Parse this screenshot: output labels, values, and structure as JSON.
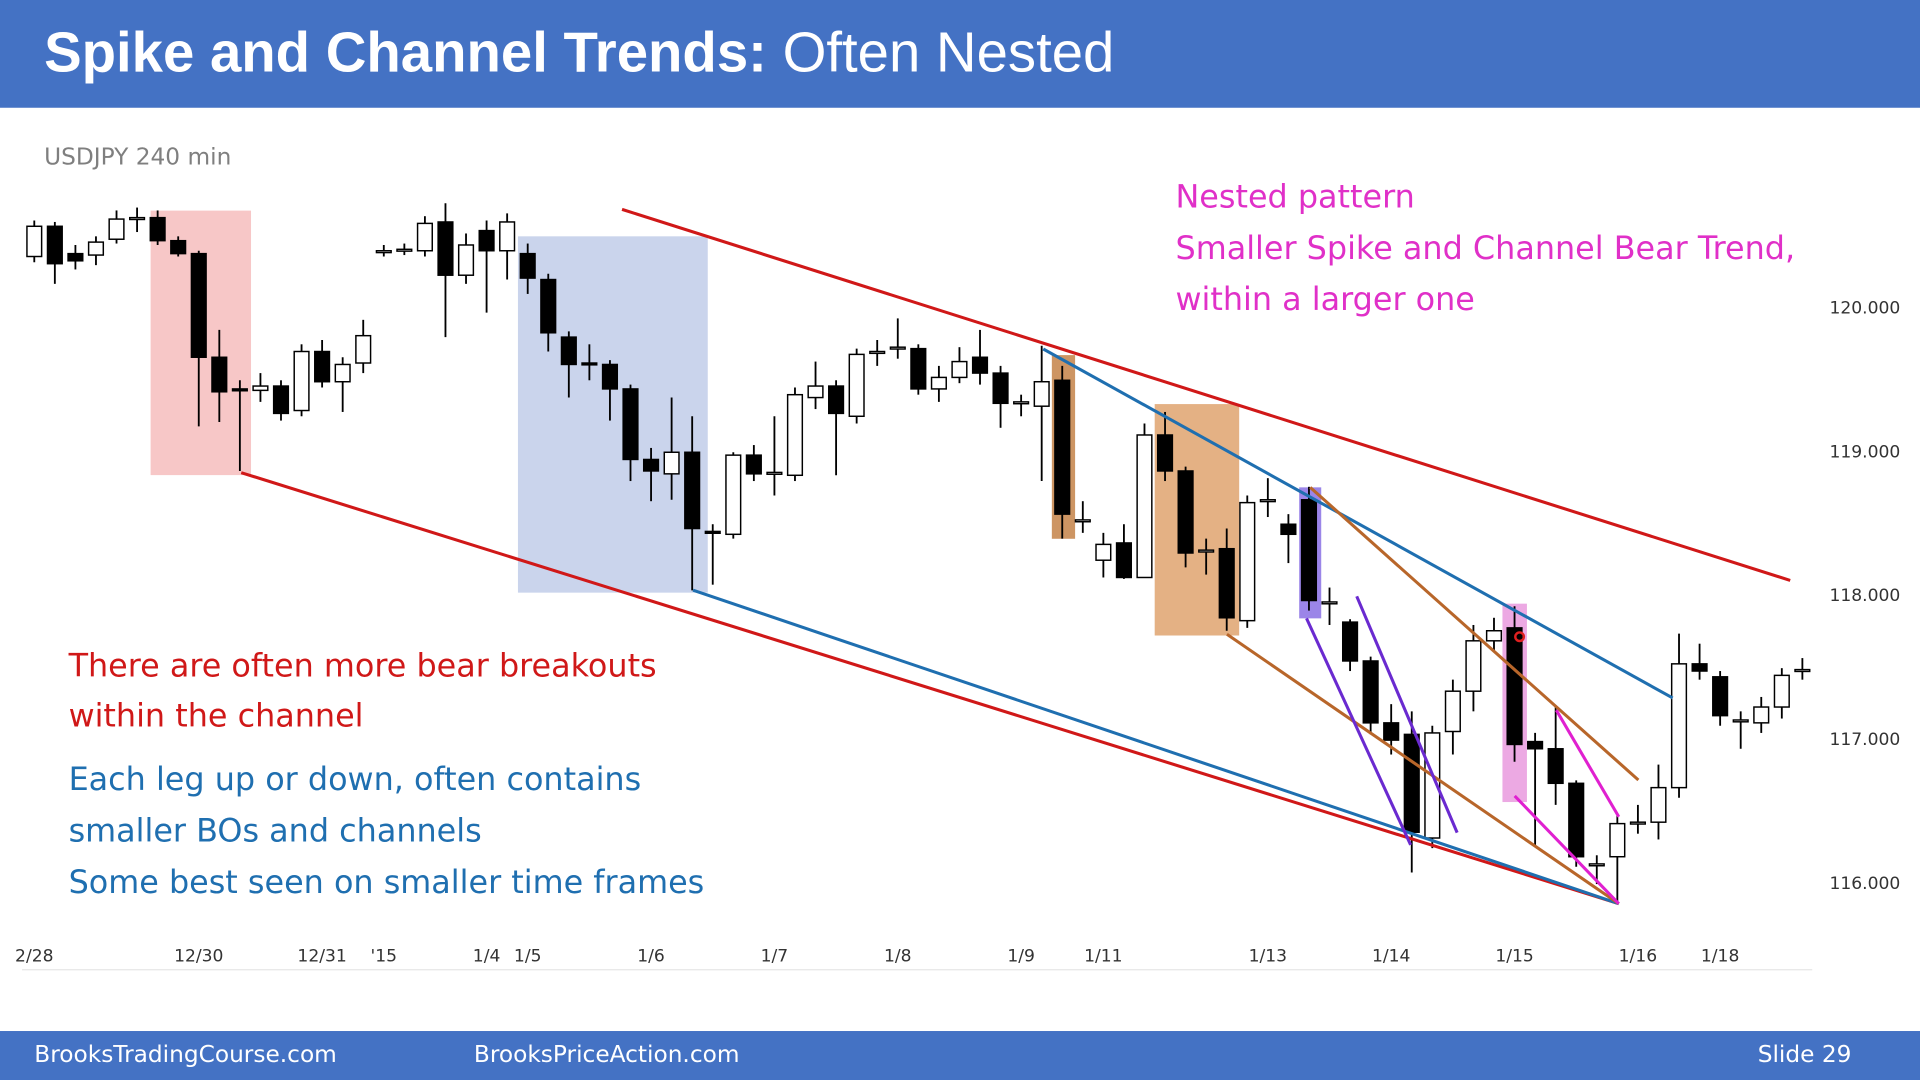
{
  "header": {
    "title_bold": "Spike and Channel Trends:",
    "title_rest": "Often Nested"
  },
  "chart_data": {
    "type": "candlestick",
    "subtitle": "USDJPY 240 min",
    "categories": [
      "2/28",
      null,
      null,
      null,
      null,
      null,
      null,
      null,
      "12/30",
      null,
      null,
      null,
      null,
      null,
      "12/31",
      null,
      null,
      "'15",
      null,
      null,
      null,
      null,
      "1/4",
      null,
      "1/5",
      null,
      null,
      null,
      null,
      null,
      "1/6",
      null,
      null,
      null,
      null,
      null,
      "1/7",
      null,
      null,
      null,
      null,
      null,
      "1/8",
      null,
      null,
      null,
      null,
      null,
      "1/9",
      null,
      null,
      null,
      "1/11",
      null,
      null,
      null,
      null,
      null,
      null,
      null,
      "1/13",
      null,
      null,
      null,
      null,
      null,
      "1/14",
      null,
      null,
      null,
      null,
      null,
      "1/15",
      null,
      null,
      null,
      null,
      null,
      "1/16",
      null,
      null,
      null,
      "1/18",
      null,
      null,
      null,
      null
    ],
    "open": [
      120.36,
      120.57,
      120.38,
      120.37,
      120.48,
      120.62,
      120.63,
      120.47,
      120.38,
      119.66,
      119.44,
      119.43,
      119.46,
      119.29,
      119.7,
      119.49,
      119.62,
      120.4,
      120.4,
      120.4,
      120.6,
      120.23,
      120.54,
      120.4,
      120.38,
      120.2,
      119.8,
      119.62,
      119.61,
      119.44,
      118.95,
      118.85,
      119.0,
      118.45,
      118.43,
      118.98,
      118.86,
      118.84,
      119.38,
      119.46,
      119.25,
      119.7,
      119.72,
      119.72,
      119.44,
      119.52,
      119.66,
      119.55,
      119.35,
      119.32,
      119.5,
      118.53,
      118.25,
      118.37,
      118.13,
      119.12,
      118.87,
      118.32,
      118.33,
      117.83,
      118.67,
      118.5,
      118.67,
      117.96,
      117.82,
      117.55,
      117.12,
      117.04,
      116.32,
      117.06,
      117.34,
      117.69,
      117.78,
      116.99,
      116.94,
      116.7,
      116.14,
      116.19,
      116.43,
      116.43,
      116.67,
      117.53,
      117.44,
      117.14,
      117.12,
      117.23,
      117.49
    ],
    "high": [
      120.61,
      120.6,
      120.44,
      120.5,
      120.68,
      120.7,
      120.68,
      120.5,
      120.4,
      119.85,
      119.5,
      119.55,
      119.5,
      119.75,
      119.78,
      119.66,
      119.92,
      120.44,
      120.45,
      120.64,
      120.73,
      120.52,
      120.61,
      120.66,
      120.45,
      120.24,
      119.84,
      119.75,
      119.64,
      119.47,
      119.03,
      119.38,
      119.25,
      118.5,
      119.0,
      119.05,
      119.25,
      119.45,
      119.63,
      119.5,
      119.72,
      119.78,
      119.93,
      119.75,
      119.6,
      119.73,
      119.85,
      119.6,
      119.4,
      119.74,
      119.6,
      118.66,
      118.44,
      118.5,
      119.2,
      119.28,
      118.9,
      118.4,
      118.47,
      118.7,
      118.82,
      118.57,
      118.76,
      118.06,
      117.84,
      117.58,
      117.25,
      117.2,
      117.1,
      117.42,
      117.8,
      117.85,
      117.93,
      117.05,
      117.23,
      116.72,
      116.2,
      116.48,
      116.55,
      116.83,
      117.74,
      117.67,
      117.48,
      117.2,
      117.3,
      117.5,
      117.57
    ],
    "low": [
      120.32,
      120.17,
      120.27,
      120.3,
      120.45,
      120.53,
      120.44,
      120.36,
      119.18,
      119.21,
      118.87,
      119.35,
      119.22,
      119.25,
      119.45,
      119.28,
      119.55,
      120.36,
      120.37,
      120.36,
      119.8,
      120.17,
      119.97,
      120.2,
      120.1,
      119.7,
      119.38,
      119.5,
      119.22,
      118.8,
      118.66,
      118.67,
      118.04,
      118.08,
      118.4,
      118.8,
      118.7,
      118.8,
      119.3,
      118.84,
      119.2,
      119.6,
      119.65,
      119.4,
      119.35,
      119.48,
      119.47,
      119.17,
      119.25,
      118.8,
      118.4,
      118.44,
      118.13,
      118.12,
      118.13,
      118.8,
      118.2,
      118.15,
      117.76,
      117.78,
      118.55,
      118.23,
      117.9,
      117.8,
      117.48,
      117.04,
      116.9,
      116.08,
      116.25,
      116.9,
      117.2,
      117.62,
      116.85,
      116.27,
      116.55,
      116.12,
      116.0,
      115.86,
      116.35,
      116.31,
      116.6,
      117.42,
      117.1,
      116.94,
      117.05,
      117.15,
      117.42
    ],
    "close": [
      120.57,
      120.31,
      120.33,
      120.46,
      120.62,
      120.63,
      120.47,
      120.38,
      119.66,
      119.42,
      119.43,
      119.46,
      119.27,
      119.7,
      119.49,
      119.61,
      119.81,
      120.4,
      120.41,
      120.59,
      120.23,
      120.44,
      120.4,
      120.6,
      120.21,
      119.83,
      119.61,
      119.61,
      119.44,
      118.95,
      118.87,
      119.0,
      118.47,
      118.44,
      118.98,
      118.85,
      118.86,
      119.4,
      119.46,
      119.27,
      119.68,
      119.7,
      119.73,
      119.44,
      119.52,
      119.63,
      119.55,
      119.34,
      119.35,
      119.49,
      118.57,
      118.53,
      118.36,
      118.13,
      119.12,
      118.87,
      118.3,
      118.32,
      117.85,
      118.65,
      118.67,
      118.43,
      117.97,
      117.96,
      117.55,
      117.12,
      117.0,
      116.36,
      117.05,
      117.34,
      117.69,
      117.76,
      116.97,
      116.94,
      116.7,
      116.19,
      116.14,
      116.42,
      116.43,
      116.67,
      117.53,
      117.48,
      117.17,
      117.14,
      117.23,
      117.45,
      117.49
    ],
    "up_color": "#ffffff",
    "down_color": "#000000",
    "ylim": [
      115.8,
      120.9
    ],
    "yticks": [
      {
        "value": 116,
        "label": "116.000"
      },
      {
        "value": 117,
        "label": "117.000"
      },
      {
        "value": 118,
        "label": "118.000"
      },
      {
        "value": 119,
        "label": "119.000"
      },
      {
        "value": 120,
        "label": "120.000"
      }
    ],
    "grid": false
  },
  "annotations": {
    "nested": [
      "Nested pattern",
      "Smaller Spike and Channel Bear Trend,",
      "within a larger one"
    ],
    "bear": [
      "There are often more bear breakouts",
      "within the channel"
    ],
    "legs": [
      "Each leg up or down, often contains",
      "smaller BOs and channels",
      "Some best seen on smaller time frames"
    ]
  },
  "footer": {
    "left": "BrooksTradingCourse.com",
    "center": "BrooksPriceAction.com",
    "slide": "Slide  29"
  }
}
